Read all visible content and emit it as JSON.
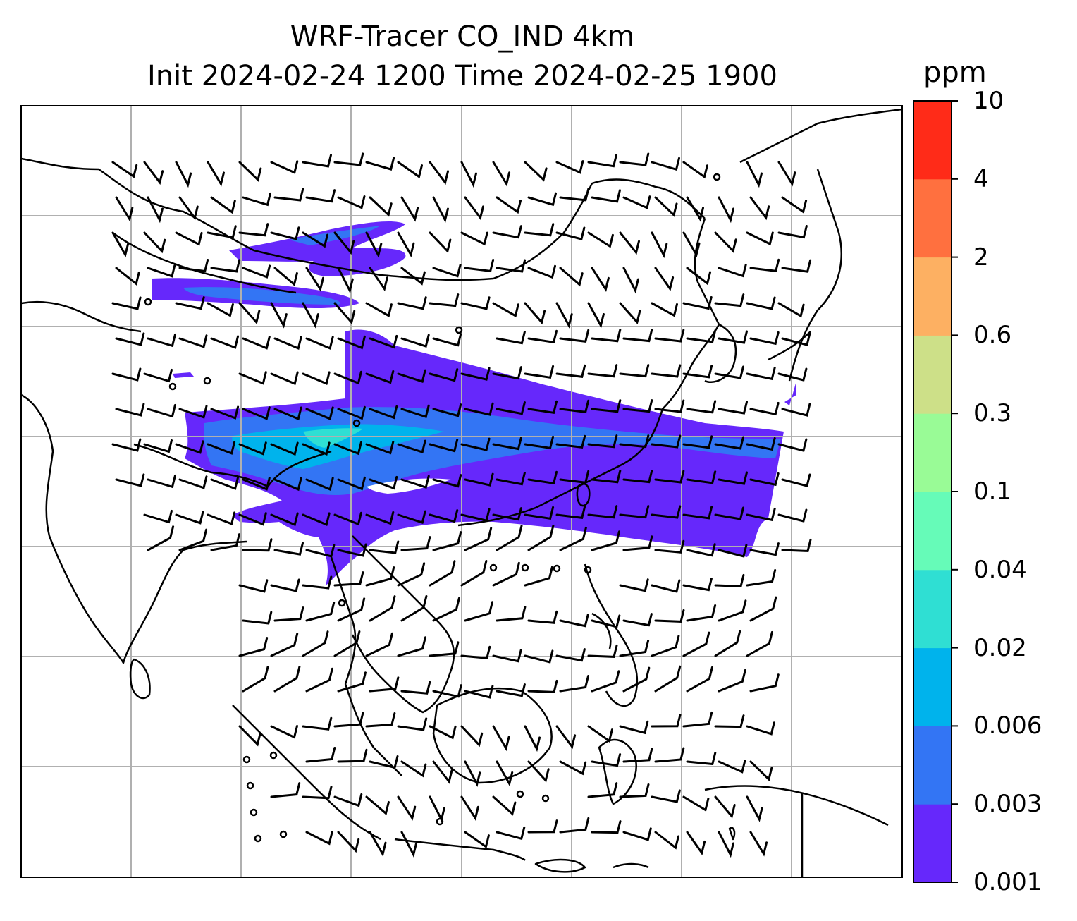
{
  "title_line1": "WRF-Tracer CO_IND 4km",
  "title_line2": "Init 2024-02-24 1200 Time 2024-02-25 1900",
  "colorbar": {
    "unit": "ppm",
    "levels": [
      "0.001",
      "0.003",
      "0.006",
      "0.02",
      "0.04",
      "0.1",
      "0.3",
      "0.6",
      "2",
      "4",
      "10"
    ],
    "colors": [
      "#6628fb",
      "#3375f4",
      "#00b3ec",
      "#2fdfd3",
      "#66fbb8",
      "#99fb96",
      "#cde088",
      "#fdb062",
      "#ff703f",
      "#ff2b18"
    ]
  },
  "map": {
    "land_outline_color": "#000000",
    "grid_color": "#b0b0b0",
    "plume_levels": [
      "0.001",
      "0.003",
      "0.006",
      "0.02"
    ]
  }
}
